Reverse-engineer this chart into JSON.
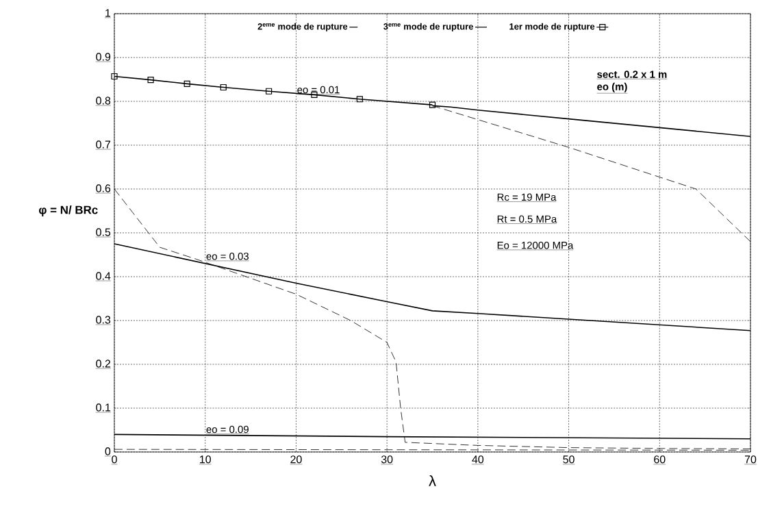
{
  "chart_data": {
    "type": "line",
    "xlabel": "λ",
    "ylabel": "φ = N/ BRc",
    "xlim": [
      0,
      70
    ],
    "ylim": [
      0,
      1
    ],
    "xticks": [
      0,
      10,
      20,
      30,
      40,
      50,
      60,
      70
    ],
    "yticks": [
      0,
      0.1,
      0.2,
      0.3,
      0.4,
      0.5,
      0.6,
      0.7,
      0.8,
      0.9,
      1
    ],
    "grid": true,
    "legend": "top",
    "series": [
      {
        "name": "2$^{eme}$ mode de rupture",
        "color": "#000000",
        "line_style": "dashed",
        "marker": "none",
        "x": [
          35,
          50,
          64,
          70
        ],
        "values": [
          0.79,
          0.695,
          0.6,
          0.48
        ]
      },
      {
        "name": "3$^{eme}$ mode de rupture",
        "color": "#000000",
        "line_style": "solid",
        "marker": "none",
        "x": [
          35,
          37,
          40,
          45,
          50,
          60,
          70
        ],
        "values": [
          0.79,
          0.787,
          0.78,
          0.77,
          0.76,
          0.74,
          0.72
        ]
      },
      {
        "name": "1er mode de rupture",
        "color": "#000000",
        "line_style": "solid",
        "marker": "square",
        "x": [
          0,
          4,
          8,
          12,
          17,
          22,
          27,
          35
        ],
        "values": [
          0.857,
          0.849,
          0.84,
          0.832,
          0.823,
          0.815,
          0.805,
          0.792
        ]
      },
      {
        "color": "#000000",
        "line_style": "solid",
        "marker": "none",
        "x": [
          0,
          10,
          20,
          30,
          35,
          40,
          50,
          60,
          70
        ],
        "values": [
          0.475,
          0.43,
          0.385,
          0.343,
          0.322,
          0.316,
          0.303,
          0.29,
          0.277
        ]
      },
      {
        "color": "#000000",
        "line_style": "dashed",
        "marker": "none",
        "x": [
          0,
          5,
          9,
          20,
          26,
          30,
          31,
          31.5,
          32,
          40,
          50,
          60,
          70
        ],
        "values": [
          0.6,
          0.467,
          0.44,
          0.36,
          0.3,
          0.25,
          0.205,
          0.1,
          0.022,
          0.015,
          0.01,
          0.008,
          0.007
        ]
      },
      {
        "color": "#000000",
        "line_style": "solid",
        "marker": "none",
        "x": [
          0,
          30,
          70
        ],
        "values": [
          0.04,
          0.035,
          0.03
        ]
      },
      {
        "color": "#000000",
        "line_style": "dashed",
        "marker": "none",
        "x": [
          0,
          70
        ],
        "values": [
          0.006,
          0.004
        ]
      }
    ],
    "annotations": [
      "eo = 0.01",
      "eo = 0.03",
      "eo = 0.09",
      "sect. 0.2 x 1 m",
      "eo (m)",
      "Rc = 19  MPa",
      "Rt = 0.5  MPa",
      "Eo = 12000  MPa"
    ]
  }
}
